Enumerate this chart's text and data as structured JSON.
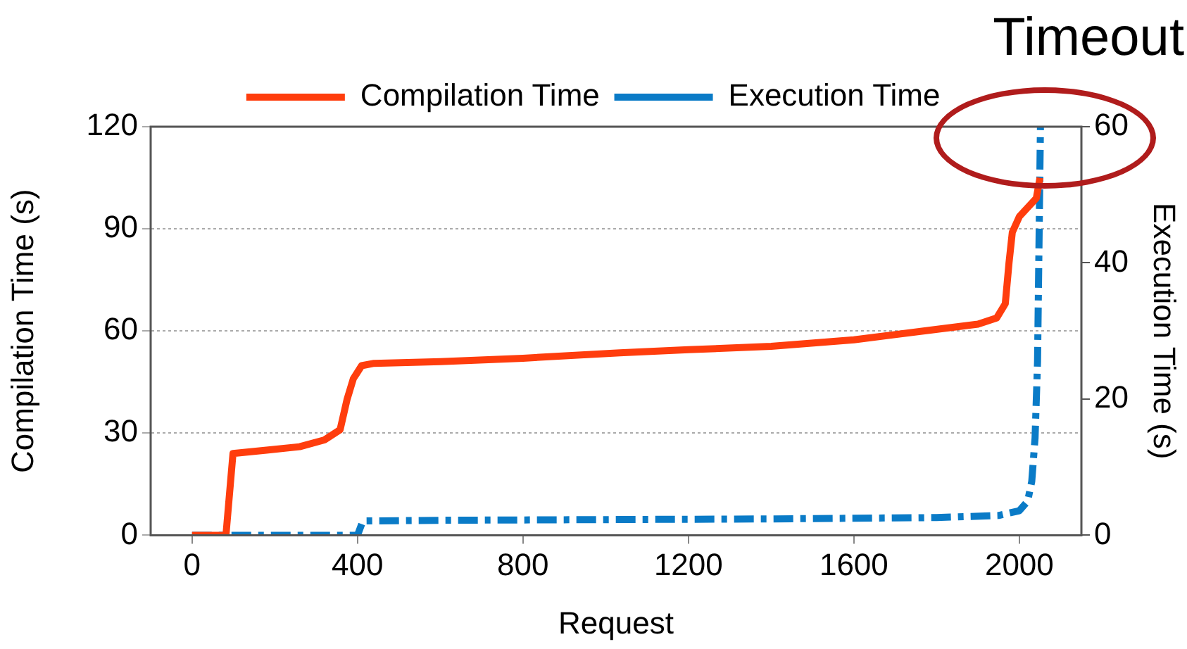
{
  "chart_data": {
    "type": "line",
    "xlabel": "Request",
    "ylabel": "Compilation Time (s)",
    "y2label": "Execution Time (s)",
    "xlim": [
      -100,
      2150
    ],
    "xticks": [
      0,
      400,
      800,
      1200,
      1600,
      2000
    ],
    "ylim": [
      0,
      120
    ],
    "yticks": [
      0,
      30,
      60,
      90,
      120
    ],
    "y2lim": [
      0,
      60
    ],
    "y2ticks": [
      0,
      20,
      40,
      60
    ],
    "grid": "y",
    "legend": "top",
    "marker": "none",
    "annotations": [
      "Timeout"
    ],
    "series": [
      {
        "name": "Compilation Time",
        "color": "#ff3d0d",
        "line_style": "solid",
        "x": [
          0,
          78,
          82,
          99,
          180,
          260,
          320,
          358,
          375,
          390,
          410,
          440,
          600,
          800,
          1034,
          1200,
          1400,
          1600,
          1795,
          1900,
          1945,
          1966,
          1975,
          1983,
          2000,
          2041,
          2050
        ],
        "values": [
          0,
          0,
          0,
          24,
          25,
          26,
          28,
          31,
          40,
          46,
          49.8,
          50.5,
          51,
          52,
          53.6,
          54.5,
          55.5,
          57.4,
          60.4,
          62,
          63.8,
          68,
          80,
          89,
          93.6,
          99,
          105
        ]
      },
      {
        "name": "Execution Time",
        "color": "#0a7bc7",
        "axis": "y2",
        "line_style": "dashed",
        "x": [
          0,
          400,
          413,
          600,
          1000,
          1400,
          1800,
          1950,
          2000,
          2020,
          2030,
          2038,
          2044,
          2051
        ],
        "values": [
          0,
          0,
          2.1,
          2.2,
          2.3,
          2.4,
          2.6,
          2.9,
          3.6,
          5,
          7.9,
          14.3,
          25.5,
          60
        ]
      }
    ]
  }
}
